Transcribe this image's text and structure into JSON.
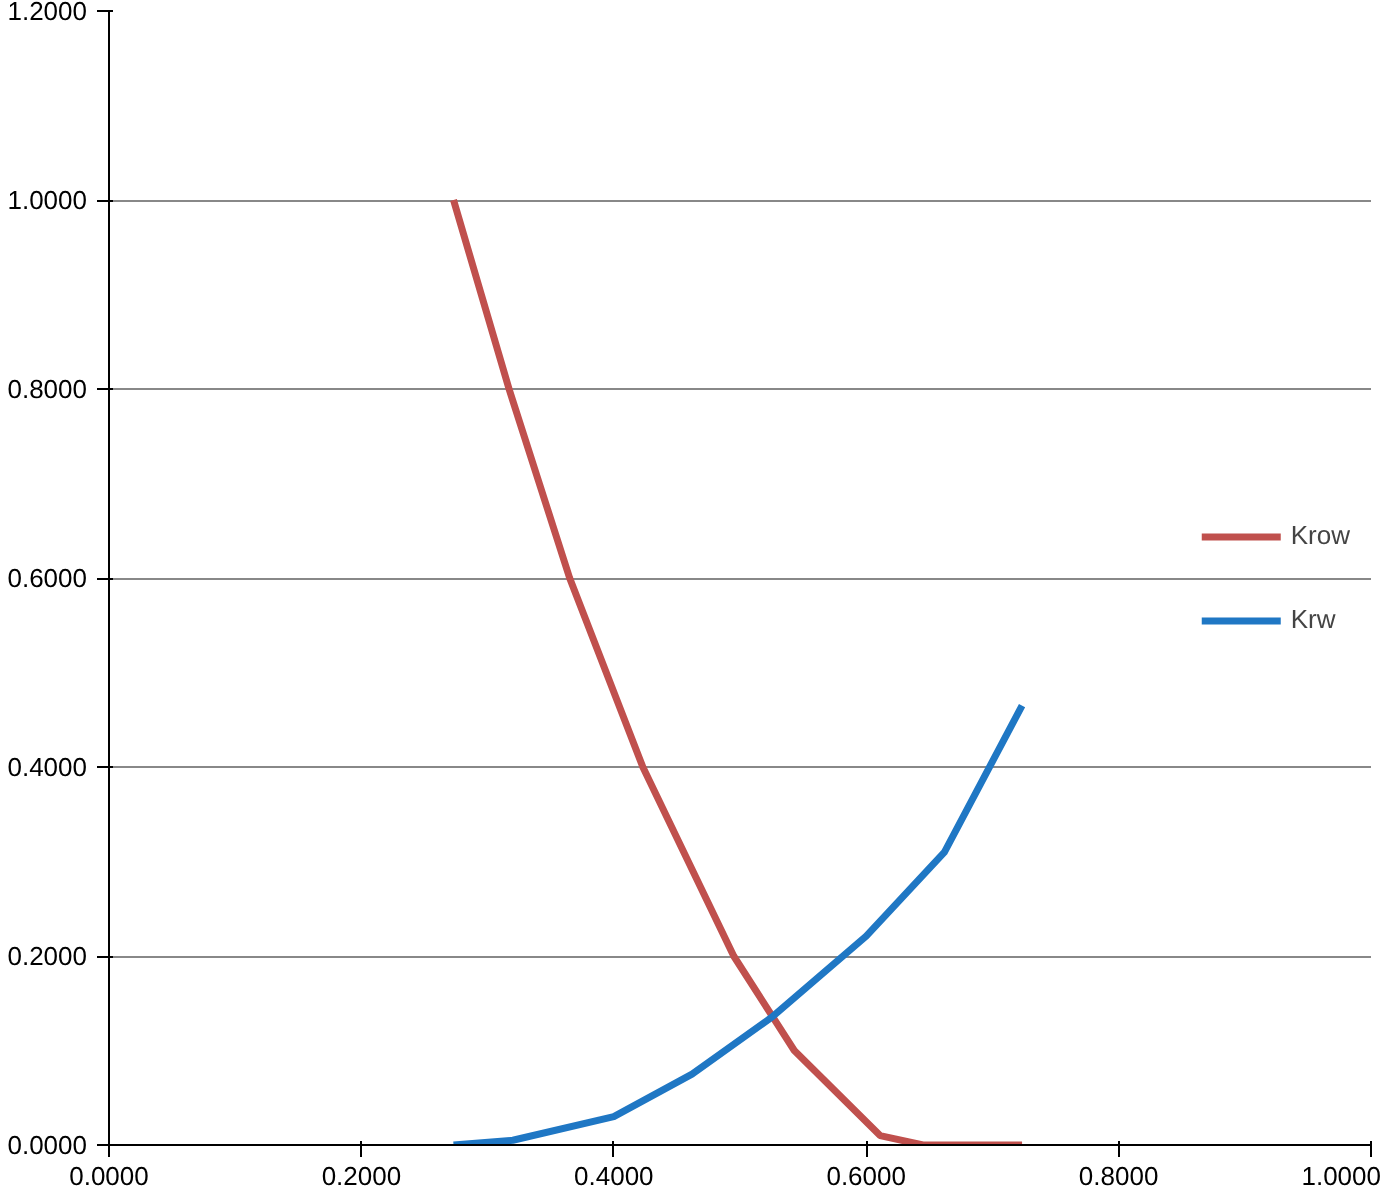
{
  "chart_data": {
    "type": "line",
    "x": [
      0.273,
      0.295,
      0.317,
      0.365,
      0.423,
      0.495,
      0.543,
      0.611,
      0.645,
      0.7235
    ],
    "series": [
      {
        "name": "Krow",
        "color": "#c0504d",
        "values": [
          1.0,
          0.9,
          0.8,
          0.6,
          0.4,
          0.2,
          0.1,
          0.01,
          0.0,
          0.0
        ]
      },
      {
        "name": "Krw",
        "color": "#1f77c4",
        "x": [
          0.273,
          0.32,
          0.4,
          0.462,
          0.525,
          0.6,
          0.662,
          0.7235
        ],
        "values": [
          0.0,
          0.005,
          0.03,
          0.075,
          0.135,
          0.221,
          0.31,
          0.465
        ]
      }
    ],
    "xlim": [
      0,
      1
    ],
    "ylim": [
      0,
      1.2
    ],
    "xticks": [
      {
        "value": 0,
        "label": "0.0000"
      },
      {
        "value": 0.2,
        "label": "0.2000"
      },
      {
        "value": 0.4,
        "label": "0.4000"
      },
      {
        "value": 0.6,
        "label": "0.6000"
      },
      {
        "value": 0.8,
        "label": "0.8000"
      },
      {
        "value": 1,
        "label": "1.0000"
      }
    ],
    "yticks": [
      {
        "value": 0,
        "label": "0.0000"
      },
      {
        "value": 0.2,
        "label": "0.2000"
      },
      {
        "value": 0.4,
        "label": "0.4000"
      },
      {
        "value": 0.6,
        "label": "0.6000"
      },
      {
        "value": 0.8,
        "label": "0.8000"
      },
      {
        "value": 1,
        "label": "1.0000"
      },
      {
        "value": 1.2,
        "label": "1.2000"
      }
    ],
    "grid": "y",
    "legend": "right",
    "marker": "none",
    "line_style": "solid"
  }
}
